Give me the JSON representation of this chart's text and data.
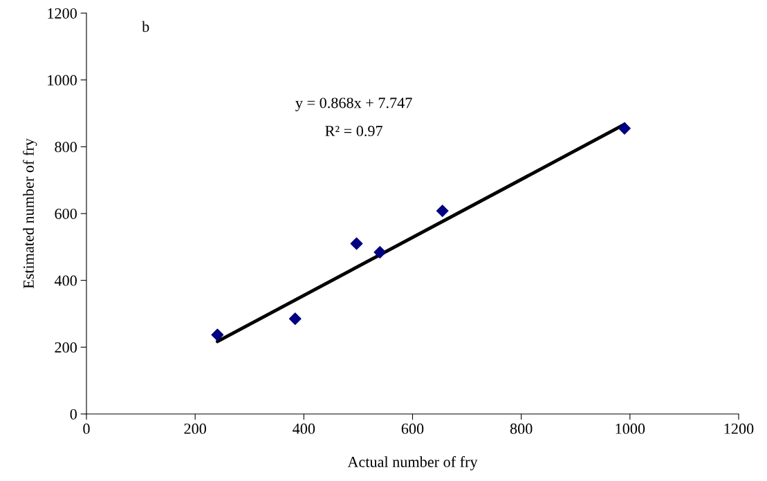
{
  "chart_data": {
    "type": "scatter",
    "xlabel": "Actual number of fry",
    "ylabel": "Estimated number of fry",
    "annotations": [
      "b",
      "y = 0.868x + 7.747",
      "R² = 0.97"
    ],
    "series": [
      {
        "color": "#000080",
        "marker": "diamond",
        "x": [
          241,
          384,
          497,
          540,
          655,
          990
        ],
        "values": [
          237,
          285,
          510,
          484,
          608,
          855
        ]
      },
      {
        "type": "line",
        "color": "#000000",
        "marker": "none",
        "line_style": "solid",
        "x": [
          241,
          990
        ],
        "values": [
          217,
          867
        ]
      }
    ],
    "xlim": [
      0,
      1200
    ],
    "ylim": [
      0,
      1200
    ],
    "xticks": [
      0,
      200,
      400,
      600,
      800,
      1000,
      1200
    ],
    "yticks": [
      0,
      200,
      400,
      600,
      800,
      1000,
      1200
    ],
    "grid": false,
    "legend": false
  }
}
